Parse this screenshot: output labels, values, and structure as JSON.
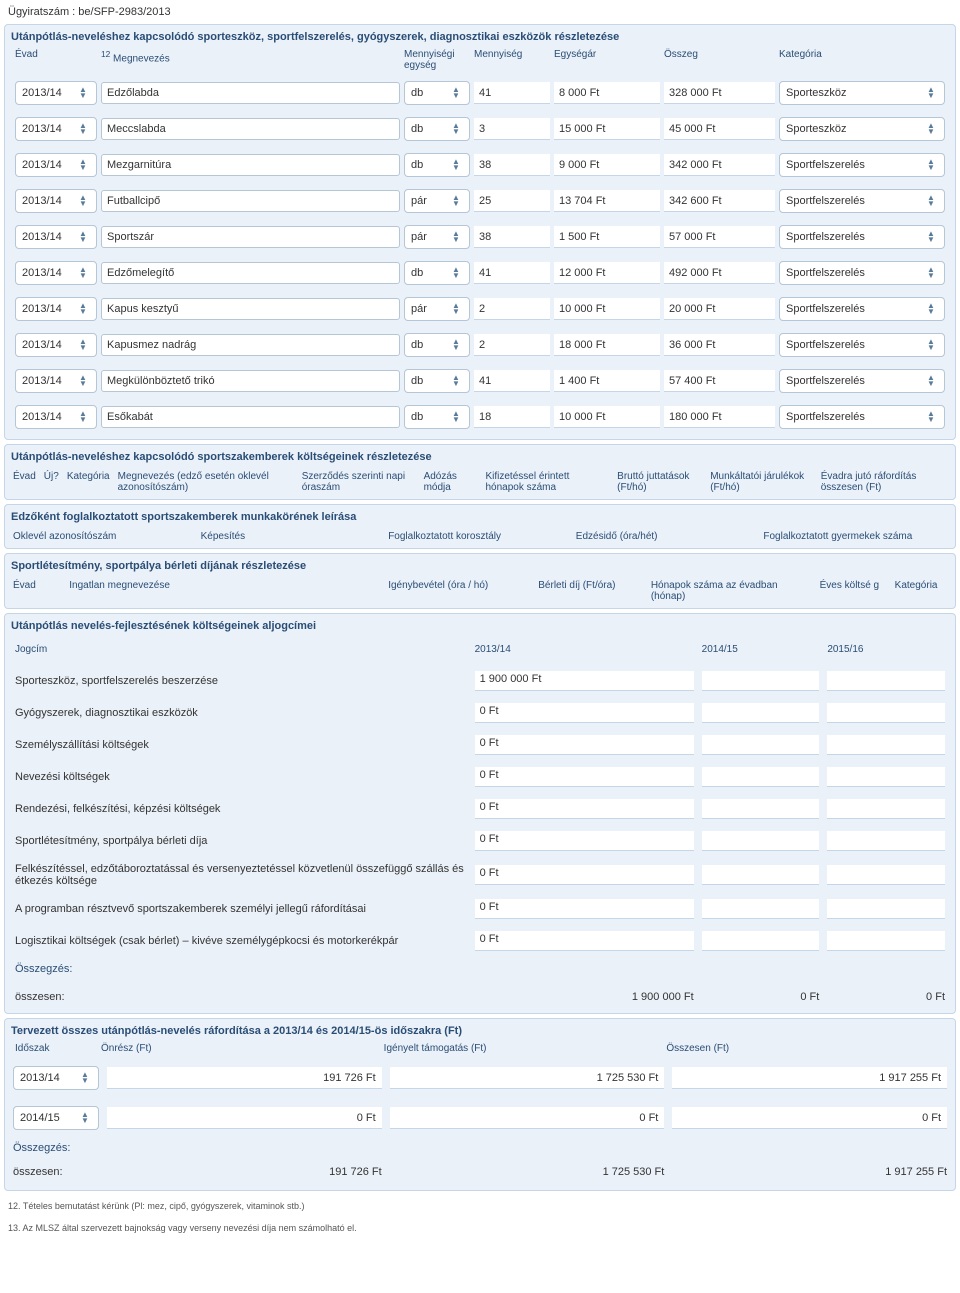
{
  "doc_number": "Ügyiratszám : be/SFP-2983/2013",
  "equip": {
    "title": "Utánpótlás-neveléshez kapcsolódó sporteszköz, sportfelszerelés, gyógyszerek, diagnosztikai eszközök részletezése",
    "sup": "12",
    "headers": {
      "evad": "Évad",
      "name": "Megnevezés",
      "unit": "Mennyiségi egység",
      "qty": "Mennyiség",
      "price": "Egységár",
      "total": "Összeg",
      "cat": "Kategória"
    },
    "rows": [
      {
        "evad": "2013/14",
        "name": "Edzőlabda",
        "unit": "db",
        "qty": "41",
        "price": "8 000 Ft",
        "total": "328 000  Ft",
        "cat": "Sporteszköz"
      },
      {
        "evad": "2013/14",
        "name": "Meccslabda",
        "unit": "db",
        "qty": "3",
        "price": "15 000 Ft",
        "total": "45 000  Ft",
        "cat": "Sporteszköz"
      },
      {
        "evad": "2013/14",
        "name": "Mezgarnitúra",
        "unit": "db",
        "qty": "38",
        "price": "9 000 Ft",
        "total": "342 000  Ft",
        "cat": "Sportfelszerelés"
      },
      {
        "evad": "2013/14",
        "name": "Futballcipő",
        "unit": "pár",
        "qty": "25",
        "price": "13 704 Ft",
        "total": "342 600  Ft",
        "cat": "Sportfelszerelés"
      },
      {
        "evad": "2013/14",
        "name": "Sportszár",
        "unit": "pár",
        "qty": "38",
        "price": "1 500 Ft",
        "total": "57 000  Ft",
        "cat": "Sportfelszerelés"
      },
      {
        "evad": "2013/14",
        "name": "Edzőmelegítő",
        "unit": "db",
        "qty": "41",
        "price": "12 000 Ft",
        "total": "492 000  Ft",
        "cat": "Sportfelszerelés"
      },
      {
        "evad": "2013/14",
        "name": "Kapus kesztyű",
        "unit": "pár",
        "qty": "2",
        "price": "10 000 Ft",
        "total": "20 000  Ft",
        "cat": "Sportfelszerelés"
      },
      {
        "evad": "2013/14",
        "name": "Kapusmez  nadrág",
        "unit": "db",
        "qty": "2",
        "price": "18 000 Ft",
        "total": "36 000  Ft",
        "cat": "Sportfelszerelés"
      },
      {
        "evad": "2013/14",
        "name": "Megkülönböztető trikó",
        "unit": "db",
        "qty": "41",
        "price": "1 400 Ft",
        "total": "57 400  Ft",
        "cat": "Sportfelszerelés"
      },
      {
        "evad": "2013/14",
        "name": "Esőkabát",
        "unit": "db",
        "qty": "18",
        "price": "10 000 Ft",
        "total": "180 000  Ft",
        "cat": "Sportfelszerelés"
      }
    ]
  },
  "staff": {
    "title": "Utánpótlás-neveléshez kapcsolódó sportszakemberek költségeinek részletezése",
    "headers": [
      "Évad",
      "Új?",
      "Kategória",
      "Megnevezés (edző esetén oklevél azonosítószám)",
      "Szerződés szerinti napi óraszám",
      "Adózás módja",
      "Kifizetéssel érintett hónapok száma",
      "Bruttó juttatások (Ft/hó)",
      "Munkáltatói járulékok (Ft/hó)",
      "Évadra jutó ráfordítás összesen (Ft)"
    ]
  },
  "coach": {
    "title": "Edzőként foglalkoztatott sportszakemberek munkakörének leírása",
    "headers": [
      "Oklevél azonosítószám",
      "Képesítés",
      "Foglalkoztatott korosztály",
      "Edzésidő (óra/hét)",
      "Foglalkoztatott gyermekek száma"
    ]
  },
  "facility": {
    "title": "Sportlétesítmény, sportpálya bérleti díjának részletezése",
    "headers": [
      "Évad",
      "Ingatlan megnevezése",
      "Igénybevétel (óra / hó)",
      "Bérleti díj (Ft/óra)",
      "Hónapok száma az évadban (hónap)",
      "Éves költsé g",
      "Kategória"
    ]
  },
  "costs": {
    "title": "Utánpótlás nevelés-fejlesztésének költségeinek aljogcímei",
    "col_headers": [
      "Jogcím",
      "2013/14",
      "2014/15",
      "2015/16"
    ],
    "rows": [
      {
        "label": "Sporteszköz, sportfelszerelés beszerzése",
        "v1": "1 900 000  Ft",
        "v2": "",
        "v3": ""
      },
      {
        "label": "Gyógyszerek, diagnosztikai eszközök",
        "v1": "0  Ft",
        "v2": "",
        "v3": ""
      },
      {
        "label": "Személyszállítási költségek",
        "v1": "0 Ft",
        "v2": "",
        "v3": ""
      },
      {
        "label": "Nevezési költségek",
        "v1": "0 Ft",
        "v2": "",
        "v3": ""
      },
      {
        "label": "Rendezési, felkészítési, képzési költségek",
        "v1": "0 Ft",
        "v2": "",
        "v3": ""
      },
      {
        "label": "Sportlétesítmény, sportpálya bérleti díja",
        "v1": "0  Ft",
        "v2": "",
        "v3": ""
      },
      {
        "label": "Felkészítéssel, edzőtáboroztatással és versenyeztetéssel közvetlenül összefüggő szállás és étkezés költsége",
        "v1": "0 Ft",
        "v2": "",
        "v3": ""
      },
      {
        "label": "A programban résztvevő sportszakemberek személyi jellegű ráfordításai",
        "v1": "0  Ft",
        "v2": "",
        "v3": ""
      },
      {
        "label": "Logisztikai költségek (csak bérlet) – kivéve személygépkocsi és motorkerékpár",
        "v1": "0 Ft",
        "v2": "",
        "v3": ""
      }
    ],
    "sum_label": "Összegzés:",
    "total_label": "összesen:",
    "totals": [
      "1 900 000 Ft",
      "0 Ft",
      "0 Ft"
    ]
  },
  "planned": {
    "title": "Tervezett összes utánpótlás-nevelés ráfordítása a 2013/14 és 2014/15-ös időszakra (Ft)",
    "headers": [
      "Időszak",
      "Önrész (Ft)",
      "Igényelt támogatás (Ft)",
      "Összesen (Ft)"
    ],
    "rows": [
      {
        "evad": "2013/14",
        "own": "191 726 Ft",
        "req": "1 725 530 Ft",
        "tot": "1 917 255 Ft"
      },
      {
        "evad": "2014/15",
        "own": "0 Ft",
        "req": "0 Ft",
        "tot": "0 Ft"
      }
    ],
    "sum_label": "Összegzés:",
    "total_label": "összesen:",
    "totals": [
      "191 726 Ft",
      "1 725 530 Ft",
      "1 917 255 Ft"
    ]
  },
  "footnotes": [
    "12. Tételes bemutatást kérünk (Pl: mez, cipő, gyógyszerek, vitaminok stb.)",
    "13. Az MLSZ által szervezett bajnokság vagy verseny nevezési díja nem számolható el."
  ]
}
